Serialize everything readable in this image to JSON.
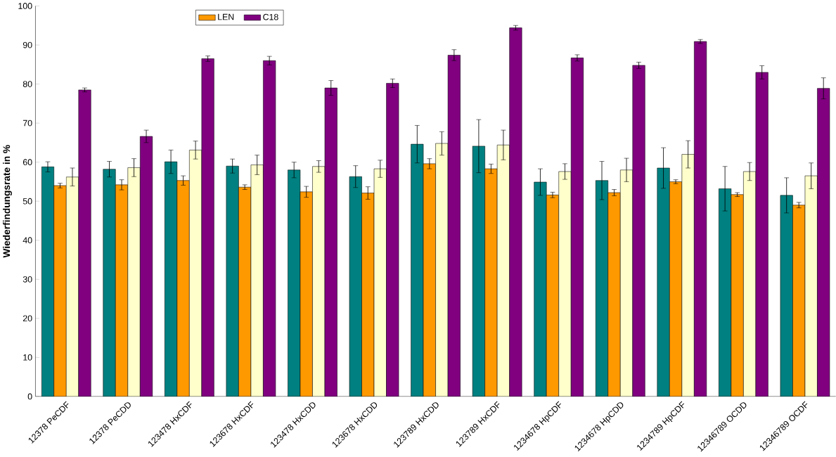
{
  "chart_data": {
    "type": "bar",
    "ylabel": "Wiederfindungsrate in %",
    "categories": [
      "12378 PeCDF",
      "12378 PeCDD",
      "123478 HxCDF",
      "123678 HxCDF",
      "123478 HxCDD",
      "123678 HxCDD",
      "123789 HxCDD",
      "123789 HxCDF",
      "1234678 HpCDF",
      "1234678 HpCDD",
      "1234789 HpCDF",
      "12346789 OCDD",
      "12346789 OCDF"
    ],
    "series": [
      {
        "color": "#008080",
        "values": [
          58.8,
          58.2,
          60.1,
          59,
          58,
          56.3,
          64.6,
          64.1,
          54.9,
          55.3,
          58.5,
          53.2,
          51.5
        ],
        "errors": [
          1.3,
          2,
          3,
          1.8,
          2,
          2.8,
          4.8,
          6.8,
          3.4,
          4.9,
          5.2,
          5.7,
          4.5
        ]
      },
      {
        "name": "LEN",
        "color": "#ff9900",
        "values": [
          54,
          54.2,
          55.3,
          53.6,
          52.4,
          52.1,
          59.6,
          58.3,
          51.6,
          52.2,
          55,
          51.7,
          49
        ],
        "errors": [
          0.6,
          1.3,
          1.2,
          0.6,
          1.4,
          1.6,
          1.3,
          1.2,
          0.7,
          0.8,
          0.5,
          0.5,
          0.7
        ]
      },
      {
        "color": "#ffffcc",
        "values": [
          56.2,
          58.6,
          63.1,
          59.3,
          58.9,
          58.3,
          64.8,
          64.4,
          57.6,
          58,
          62,
          57.6,
          56.5
        ],
        "errors": [
          2.3,
          2.3,
          2.3,
          2.5,
          1.5,
          2.2,
          3,
          3.8,
          2,
          3,
          3.5,
          2.3,
          3.3
        ]
      },
      {
        "name": "C18",
        "color": "#800080",
        "values": [
          78.5,
          66.6,
          86.5,
          86,
          79,
          80.2,
          87.4,
          94.4,
          86.7,
          84.8,
          90.9,
          83,
          78.9
        ],
        "errors": [
          0.5,
          1.6,
          0.7,
          1.1,
          1.9,
          1.1,
          1.4,
          0.6,
          0.8,
          0.8,
          0.5,
          1.7,
          2.7
        ]
      }
    ],
    "ylim": [
      0,
      100
    ],
    "yticks": [
      0,
      10,
      20,
      30,
      40,
      50,
      60,
      70,
      80,
      90,
      100
    ],
    "legend": "top",
    "grid": false
  }
}
